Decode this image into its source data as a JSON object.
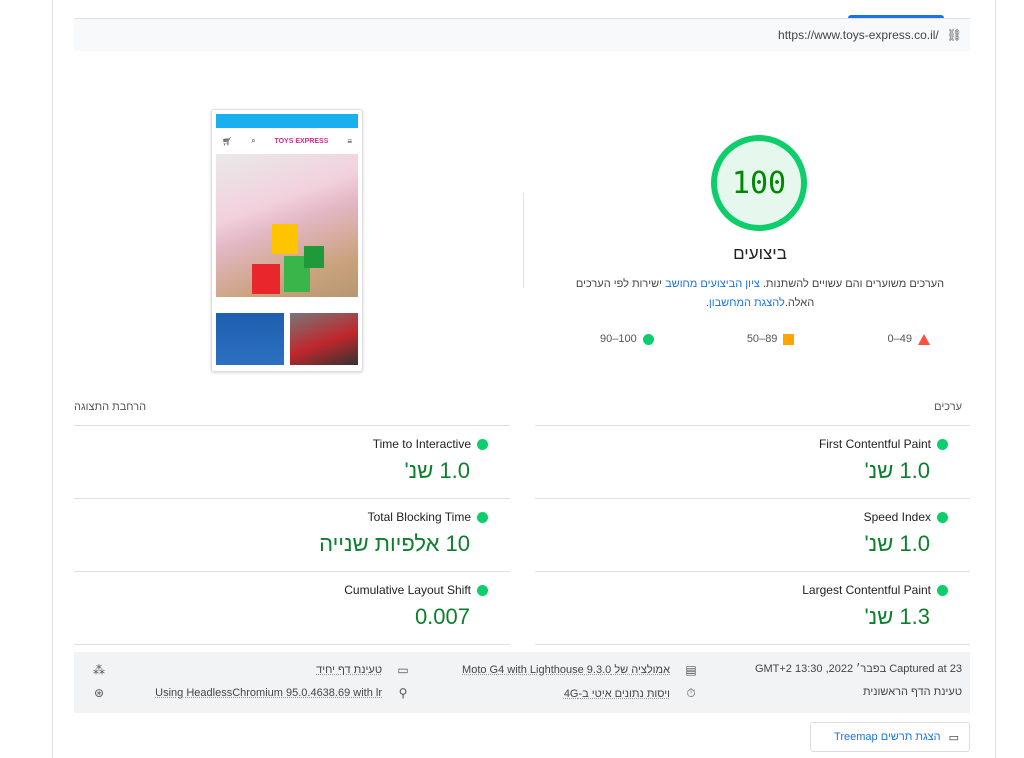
{
  "url": "https://www.toys-express.co.il/",
  "score": {
    "value": "100",
    "title": "ביצועים",
    "desc_pre": "הערכים משוערים והם עשויים להשתנות. ",
    "desc_link1": "ציון הביצועים מחושב",
    "desc_mid": " ישירות לפי הערכים האלה.",
    "desc_link2": "להצגת המחשבון",
    "desc_end": ".",
    "color": "#0cce6b"
  },
  "legend": [
    {
      "range": "49–0",
      "shape": "triangle",
      "color": "#ff4e42"
    },
    {
      "range": "89–50",
      "shape": "square",
      "color": "#ffa400"
    },
    {
      "range": "100–90",
      "shape": "circle",
      "color": "#0cce6b"
    }
  ],
  "screenshot": {
    "logo": "TOYS EXPRESS"
  },
  "metrics_header": {
    "title": "ערכים",
    "expand": "הרחבת התצוגה"
  },
  "metrics": [
    {
      "label": "First Contentful Paint",
      "value": "1.0 שנ'"
    },
    {
      "label": "Time to Interactive",
      "value": "1.0 שנ'"
    },
    {
      "label": "Speed Index",
      "value": "1.0 שנ'"
    },
    {
      "label": "Total Blocking Time",
      "value": "10 אלפיות שנייה"
    },
    {
      "label": "Largest Contentful Paint",
      "value": "1.3 שנ'"
    },
    {
      "label": "Cumulative Layout Shift",
      "value": "0.007"
    }
  ],
  "footer": {
    "captured": "Captured at 23 בפבר׳ 2022, 13:30 GMT+2",
    "emulation": "אמולציה של Moto G4 with Lighthouse 9.3.0",
    "single_load": "טעינת דף יחיד",
    "initial_load": "טעינת הדף הראשונית",
    "throttling": "ויסות נתונים איטי ב-4G",
    "browser": "Using HeadlessChromium 95.0.4638.69 with lr"
  },
  "treemap_button": "הצגת תרשים Treemap"
}
